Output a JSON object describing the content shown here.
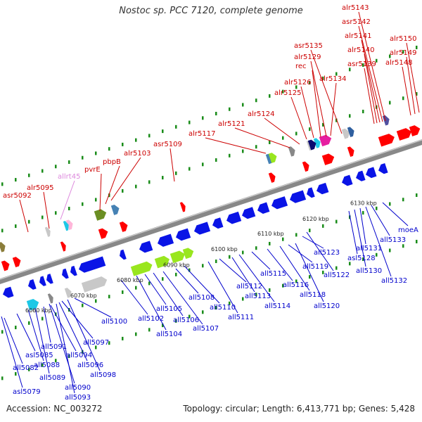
{
  "title": "Nostoc sp. PCC 7120, complete genome",
  "footer": {
    "accession": "Accession: NC_003272",
    "summary": "Topology: circular; Length: 6,413,771 bp; Genes: 5,428"
  },
  "colors": {
    "forward_label": "#cc0000",
    "reverse_label": "#0000cc",
    "rna_label": "#dd88dd",
    "backbone": "#888888",
    "tick_dots": "#1a8c1a"
  },
  "ticks": [
    "6060 kbp",
    "6070 kbp",
    "6080 kbp",
    "6090 kbp",
    "6100 kbp",
    "6110 kbp",
    "6120 kbp",
    "6130 kbp"
  ],
  "forward_labels": [
    "asr5092",
    "alr5095",
    "allrt45",
    "pvrE",
    "pbpB",
    "alr5103",
    "asr5109",
    "alr5117",
    "alr5121",
    "alr5124",
    "alr5125",
    "alr5126",
    "rec",
    "alr5129",
    "asr5135",
    "alr5134",
    "alr5143",
    "asr5142",
    "alr5141",
    "alr5140",
    "asr5139",
    "alr5150",
    "alr5149",
    "alr5148"
  ],
  "reverse_labels": [
    "asl5079",
    "all5082",
    "asl5085",
    "all5088",
    "all5089",
    "all5090",
    "all5091",
    "all5093",
    "all5094",
    "all5096",
    "all5097",
    "all5098",
    "all5100",
    "all5102",
    "all5104",
    "all5105",
    "all5106",
    "all5107",
    "all5108",
    "all5110",
    "all5111",
    "all5112",
    "all5113",
    "all5114",
    "all5115",
    "all5116",
    "all5118",
    "all5119",
    "all5120",
    "all5122",
    "all5123",
    "asl5128",
    "all5130",
    "all5131",
    "all5132",
    "all5133",
    "moeA"
  ]
}
